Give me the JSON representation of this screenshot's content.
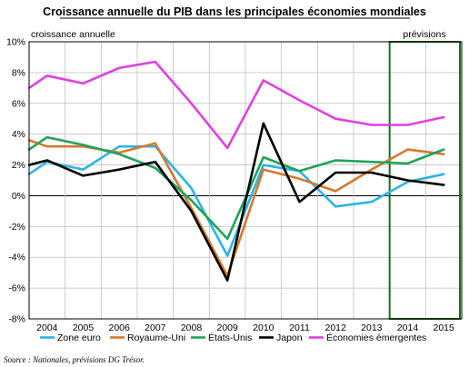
{
  "chart_data": {
    "type": "line",
    "title": "Croissance annuelle du PIB dans les principales économies mondiales",
    "ylabel": "croissance annuelle",
    "forecast_label": "prévisions",
    "source": "Source : Nationales, prévisions DG Trésor.",
    "x": [
      "2004",
      "2005",
      "2006",
      "2007",
      "2008",
      "2009",
      "2010",
      "2011",
      "2012",
      "2013",
      "2014",
      "2015"
    ],
    "ylim": [
      -8,
      10
    ],
    "yticks": [
      -8,
      -6,
      -4,
      -2,
      0,
      2,
      4,
      6,
      8,
      10
    ],
    "y_tick_format": "{v}%",
    "grid": true,
    "legend_position": "bottom",
    "forecast_range": [
      "2014",
      "2015"
    ],
    "series": [
      {
        "name": "Zone euro",
        "color": "#2cb3e6",
        "values": [
          1.4,
          2.2,
          1.7,
          3.2,
          3.2,
          0.5,
          -3.9,
          2.0,
          1.6,
          -0.7,
          -0.4,
          0.9,
          1.4
        ]
      },
      {
        "name": "Royaume-Uni",
        "color": "#d6782c",
        "values": [
          3.6,
          3.2,
          3.2,
          2.8,
          3.4,
          -0.8,
          -5.2,
          1.7,
          1.1,
          0.3,
          1.7,
          3.0,
          2.7
        ]
      },
      {
        "name": "États-Unis",
        "color": "#1fa35a",
        "values": [
          3.0,
          3.8,
          3.3,
          2.7,
          1.8,
          -0.3,
          -2.8,
          2.5,
          1.6,
          2.3,
          2.2,
          2.1,
          3.0
        ]
      },
      {
        "name": "Japon",
        "color": "#000000",
        "values": [
          2.0,
          2.3,
          1.3,
          1.7,
          2.2,
          -1.0,
          -5.5,
          4.7,
          -0.4,
          1.5,
          1.5,
          1.0,
          0.7
        ]
      },
      {
        "name": "Économies émergentes",
        "color": "#e040e0",
        "values": [
          7.0,
          7.8,
          7.3,
          8.3,
          8.7,
          6.0,
          3.1,
          7.5,
          6.2,
          5.0,
          4.6,
          4.6,
          5.1
        ]
      }
    ],
    "x_values": [
      2003.5,
      2004,
      2005,
      2006,
      2007,
      2008,
      2009,
      2010,
      2011,
      2012,
      2013,
      2014,
      2015
    ]
  }
}
